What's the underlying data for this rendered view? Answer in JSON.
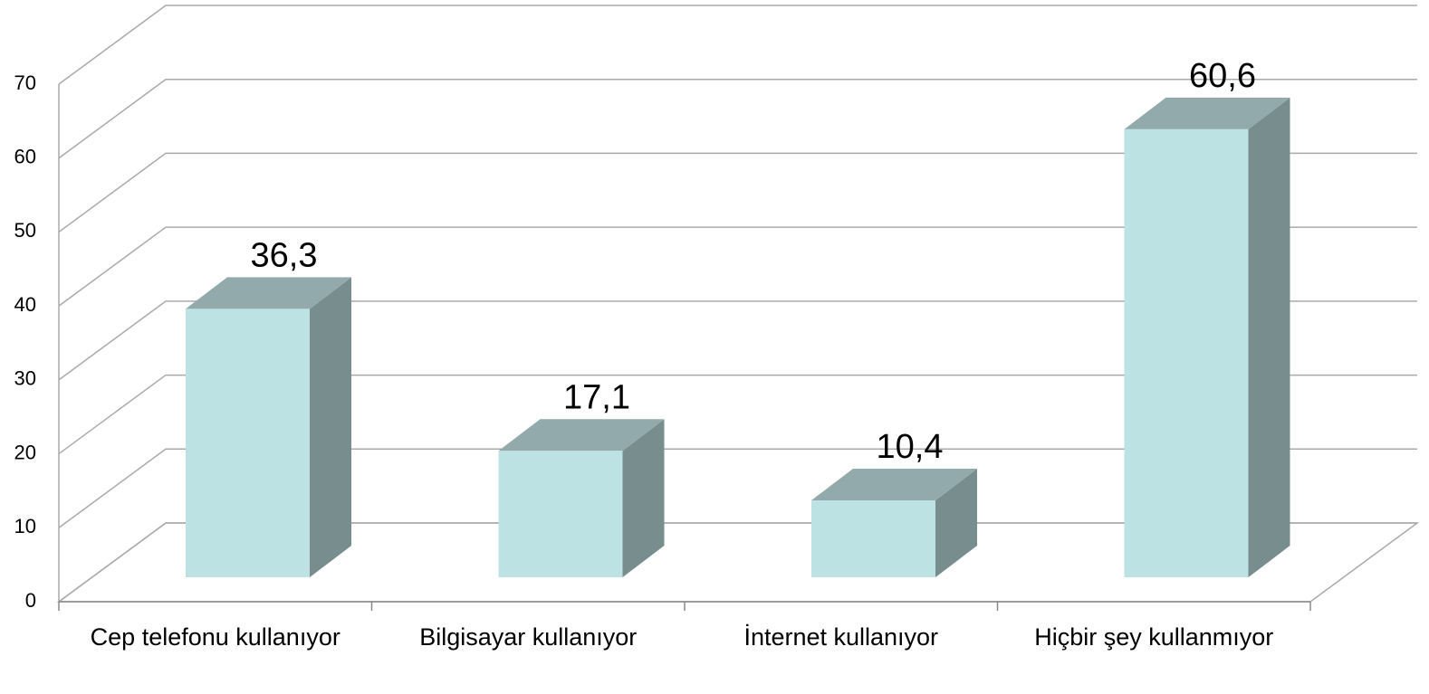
{
  "chart_data": {
    "type": "bar3d",
    "categories": [
      "Cep telefonu kullanıyor",
      "Bilgisayar kullanıyor",
      "İnternet kullanıyor",
      "Hiçbir şey kullanmıyor"
    ],
    "values": [
      36.3,
      17.1,
      10.4,
      60.6
    ],
    "value_labels": [
      "36,3",
      "17,1",
      "10,4",
      "60,6"
    ],
    "colors": {
      "front": "#bce2e4",
      "top": "#93aaac",
      "side": "#788e8e"
    },
    "ylim": [
      0,
      70
    ],
    "yticks": [
      0,
      10,
      20,
      30,
      40,
      50,
      60,
      70
    ],
    "grid": true
  }
}
